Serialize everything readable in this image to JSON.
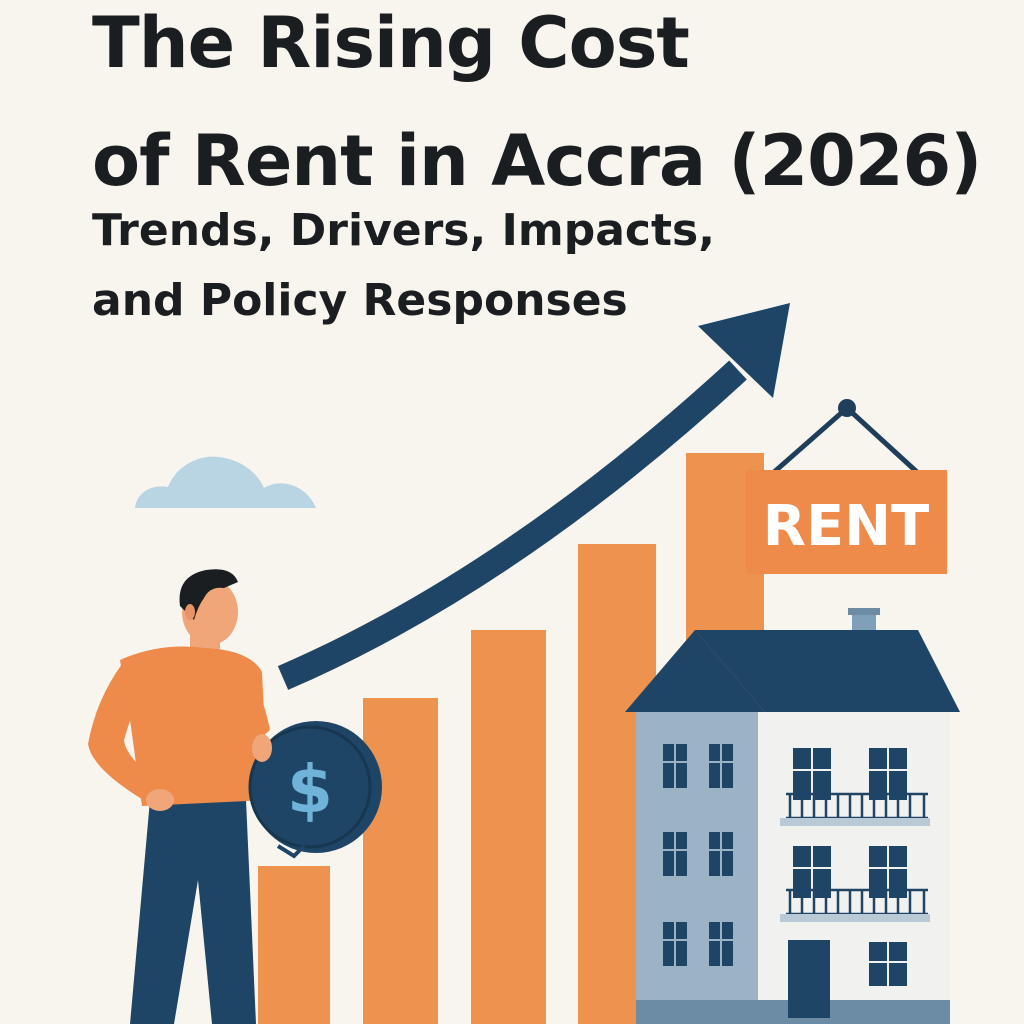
{
  "title_line1": "The Rising Cost",
  "title_line2": "of Rent in Accra (2026)",
  "subtitle_line1": "Trends, Drivers, Impacts,",
  "subtitle_line2": "and Policy Responses",
  "sign_text": "RENT",
  "coin_symbol": "$",
  "colors": {
    "background": "#f8f5ef",
    "bars": "#ee9250",
    "arrow": "#1f4566",
    "sign": "#ee8a4a",
    "house_roof": "#1f4566",
    "house_side": "#9bb3c4",
    "house_front": "#f1f1ef",
    "cloud": "#b9d4e2"
  },
  "icons": [
    "cloud-icon",
    "trend-arrow-icon",
    "coin-icon",
    "rent-sign-icon",
    "house-icon",
    "person-icon"
  ]
}
